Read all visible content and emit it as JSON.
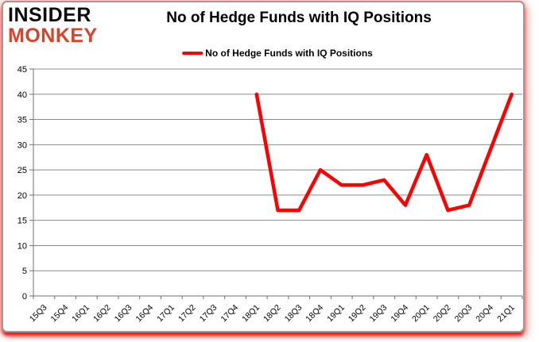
{
  "logo": {
    "line1": "INSIDER",
    "line2": "MONKEY"
  },
  "header": {
    "title": "No of Hedge Funds with IQ Positions"
  },
  "legend": {
    "label": "No of Hedge Funds with IQ Positions",
    "line_color": "#ff0000"
  },
  "chart_data": {
    "type": "line",
    "title": "No of Hedge Funds with IQ Positions",
    "categories": [
      "15Q3",
      "15Q4",
      "16Q1",
      "16Q2",
      "16Q3",
      "16Q4",
      "17Q1",
      "17Q2",
      "17Q3",
      "17Q4",
      "18Q1",
      "18Q2",
      "18Q3",
      "18Q4",
      "19Q1",
      "19Q2",
      "19Q3",
      "19Q4",
      "20Q1",
      "20Q2",
      "20Q3",
      "20Q4",
      "21Q1"
    ],
    "series": [
      {
        "name": "No of Hedge Funds with IQ Positions",
        "color": "#ff0000",
        "values": [
          null,
          null,
          null,
          null,
          null,
          null,
          null,
          null,
          null,
          null,
          40,
          17,
          17,
          25,
          22,
          22,
          23,
          18,
          28,
          17,
          18,
          29,
          40
        ]
      }
    ],
    "xlabel": "",
    "ylabel": "",
    "ylim": [
      0,
      45
    ],
    "ytick_step": 5,
    "grid": true,
    "legend_position": "top",
    "gridline_color": "#8c8c8c",
    "axis_color": "#707070",
    "label_color": "#000000"
  }
}
